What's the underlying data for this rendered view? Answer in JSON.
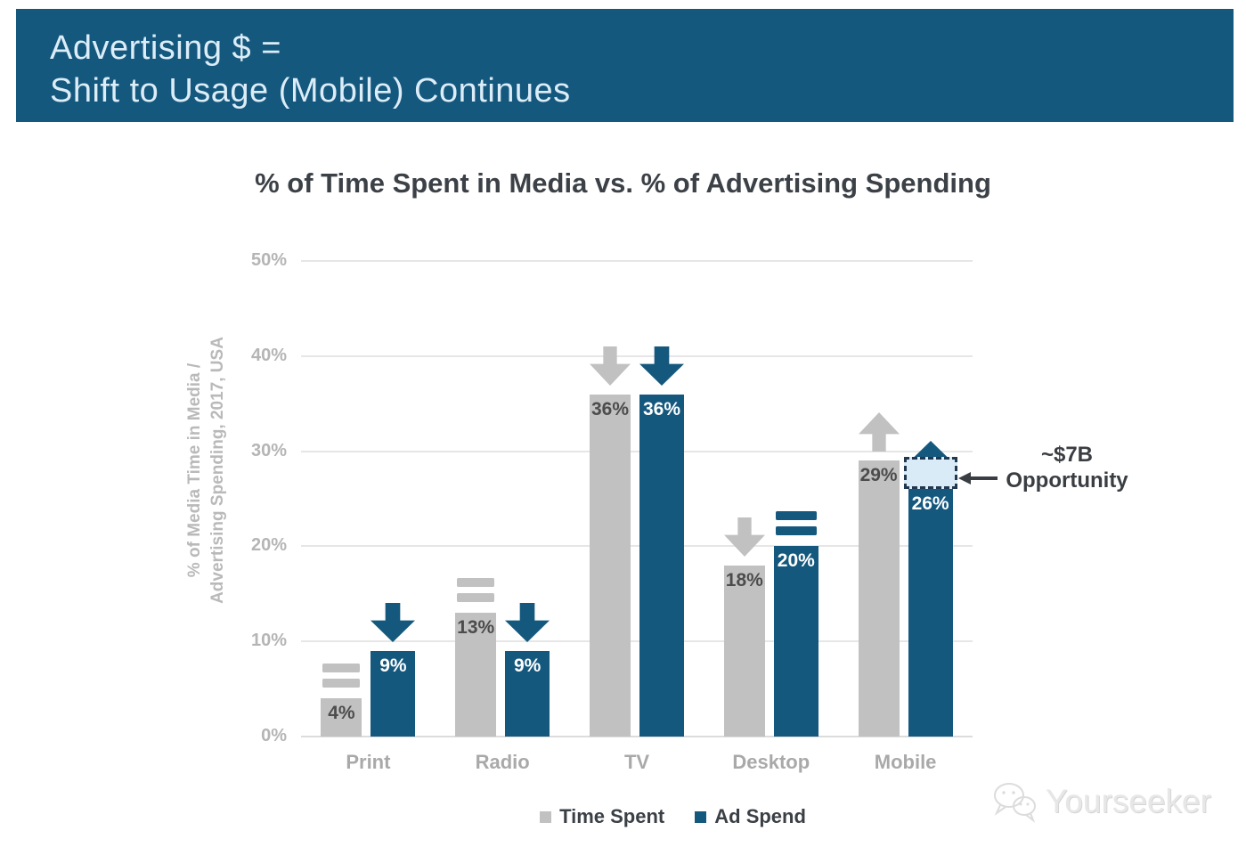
{
  "banner": {
    "line1": "Advertising $ =",
    "line2": "Shift to Usage (Mobile) Continues",
    "bg_color": "#15587E",
    "text_color": "#DCEDF8"
  },
  "chart_data": {
    "type": "bar",
    "title": "% of Time Spent in Media vs. % of Advertising Spending",
    "ylabel_line1": "% of Media Time in Media /",
    "ylabel_line2": "Advertising Spending, 2017, USA",
    "categories": [
      "Print",
      "Radio",
      "TV",
      "Desktop",
      "Mobile"
    ],
    "series": [
      {
        "name": "Time Spent",
        "color": "#C1C1C1",
        "label_color": "#4C4C4C",
        "values": [
          4,
          13,
          36,
          18,
          29
        ],
        "labels": [
          "4%",
          "13%",
          "36%",
          "18%",
          "29%"
        ],
        "trend": [
          "equal",
          "equal",
          "down",
          "down",
          "up"
        ]
      },
      {
        "name": "Ad Spend",
        "color": "#15587E",
        "label_color": "#FFFFFF",
        "values": [
          9,
          9,
          36,
          20,
          26
        ],
        "labels": [
          "9%",
          "9%",
          "36%",
          "20%",
          "26%"
        ],
        "trend": [
          "down",
          "down",
          "down",
          "equal",
          "up"
        ]
      }
    ],
    "ylim": [
      0,
      50
    ],
    "yticks": [
      {
        "value": 0,
        "label": "0%"
      },
      {
        "value": 10,
        "label": "10%"
      },
      {
        "value": 20,
        "label": "20%"
      },
      {
        "value": 30,
        "label": "30%"
      },
      {
        "value": 40,
        "label": "40%"
      },
      {
        "value": 50,
        "label": "50%"
      }
    ],
    "grid": true,
    "legend_position": "bottom",
    "annotation": {
      "line1": "~$7B",
      "line2": "Opportunity",
      "box": {
        "category_index": 4,
        "series_index": 1,
        "from_value": 26,
        "to_value": 29.4
      },
      "box_fill": "#D9EBF6",
      "box_border": "#223750",
      "arrow_color": "#3A3E43"
    }
  },
  "legend": {
    "items": [
      {
        "label": "Time Spent",
        "color": "#C1C1C1"
      },
      {
        "label": "Ad Spend",
        "color": "#15587E"
      }
    ]
  },
  "watermark": {
    "text": "Yourseeker"
  }
}
